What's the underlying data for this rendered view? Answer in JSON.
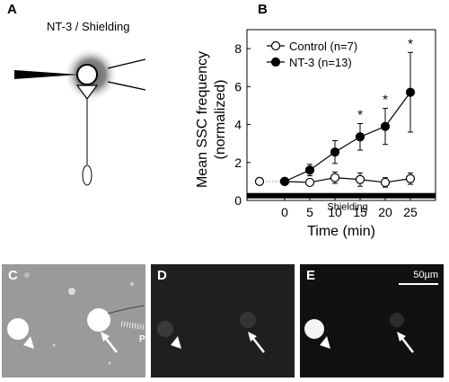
{
  "panels": {
    "a": {
      "letter": "A",
      "title": "NT-3 / Shielding"
    },
    "b": {
      "letter": "B"
    },
    "c": {
      "letter": "C",
      "pipette_label": "P"
    },
    "d": {
      "letter": "D"
    },
    "e": {
      "letter": "E",
      "scale_label": "50µm"
    }
  },
  "colors": {
    "control_fill": "#ffffff",
    "nt3_fill": "#000000",
    "shield_bar": "#000000",
    "micro_c_bg": "#9a9a9a",
    "micro_d_bg": "#1f1f1f",
    "micro_e_bg": "#111111"
  },
  "chart_data": {
    "type": "line",
    "xlabel": "Time (min)",
    "ylabel_lines": [
      "Mean SSC frequency",
      "(normalized)"
    ],
    "x_ticks": [
      "0",
      "5",
      "10",
      "15",
      "20",
      "25"
    ],
    "y_ticks": [
      "0",
      "2",
      "4",
      "6",
      "8"
    ],
    "xlim": [
      -7.5,
      30
    ],
    "ylim": [
      0,
      9
    ],
    "series": [
      {
        "name": "Control (n=7)",
        "marker": "open-circle",
        "x": [
          -5,
          0,
          5,
          10,
          15,
          20,
          25
        ],
        "y": [
          1.0,
          1.0,
          0.95,
          1.2,
          1.1,
          0.95,
          1.15
        ],
        "err": [
          0,
          0,
          0.15,
          0.3,
          0.35,
          0.25,
          0.3
        ]
      },
      {
        "name": "NT-3 (n=13)",
        "marker": "filled-circle",
        "x": [
          0,
          5,
          10,
          15,
          20,
          25
        ],
        "y": [
          1.0,
          1.6,
          2.55,
          3.35,
          3.9,
          5.7
        ],
        "err": [
          0,
          0.3,
          0.6,
          0.7,
          0.95,
          2.1
        ]
      }
    ],
    "significance_x": [
      15,
      20,
      25
    ],
    "significance_marker": "*",
    "shielding_label": "Shielding",
    "shielding_range": [
      -7.5,
      30
    ],
    "legend_position": "top-left"
  }
}
